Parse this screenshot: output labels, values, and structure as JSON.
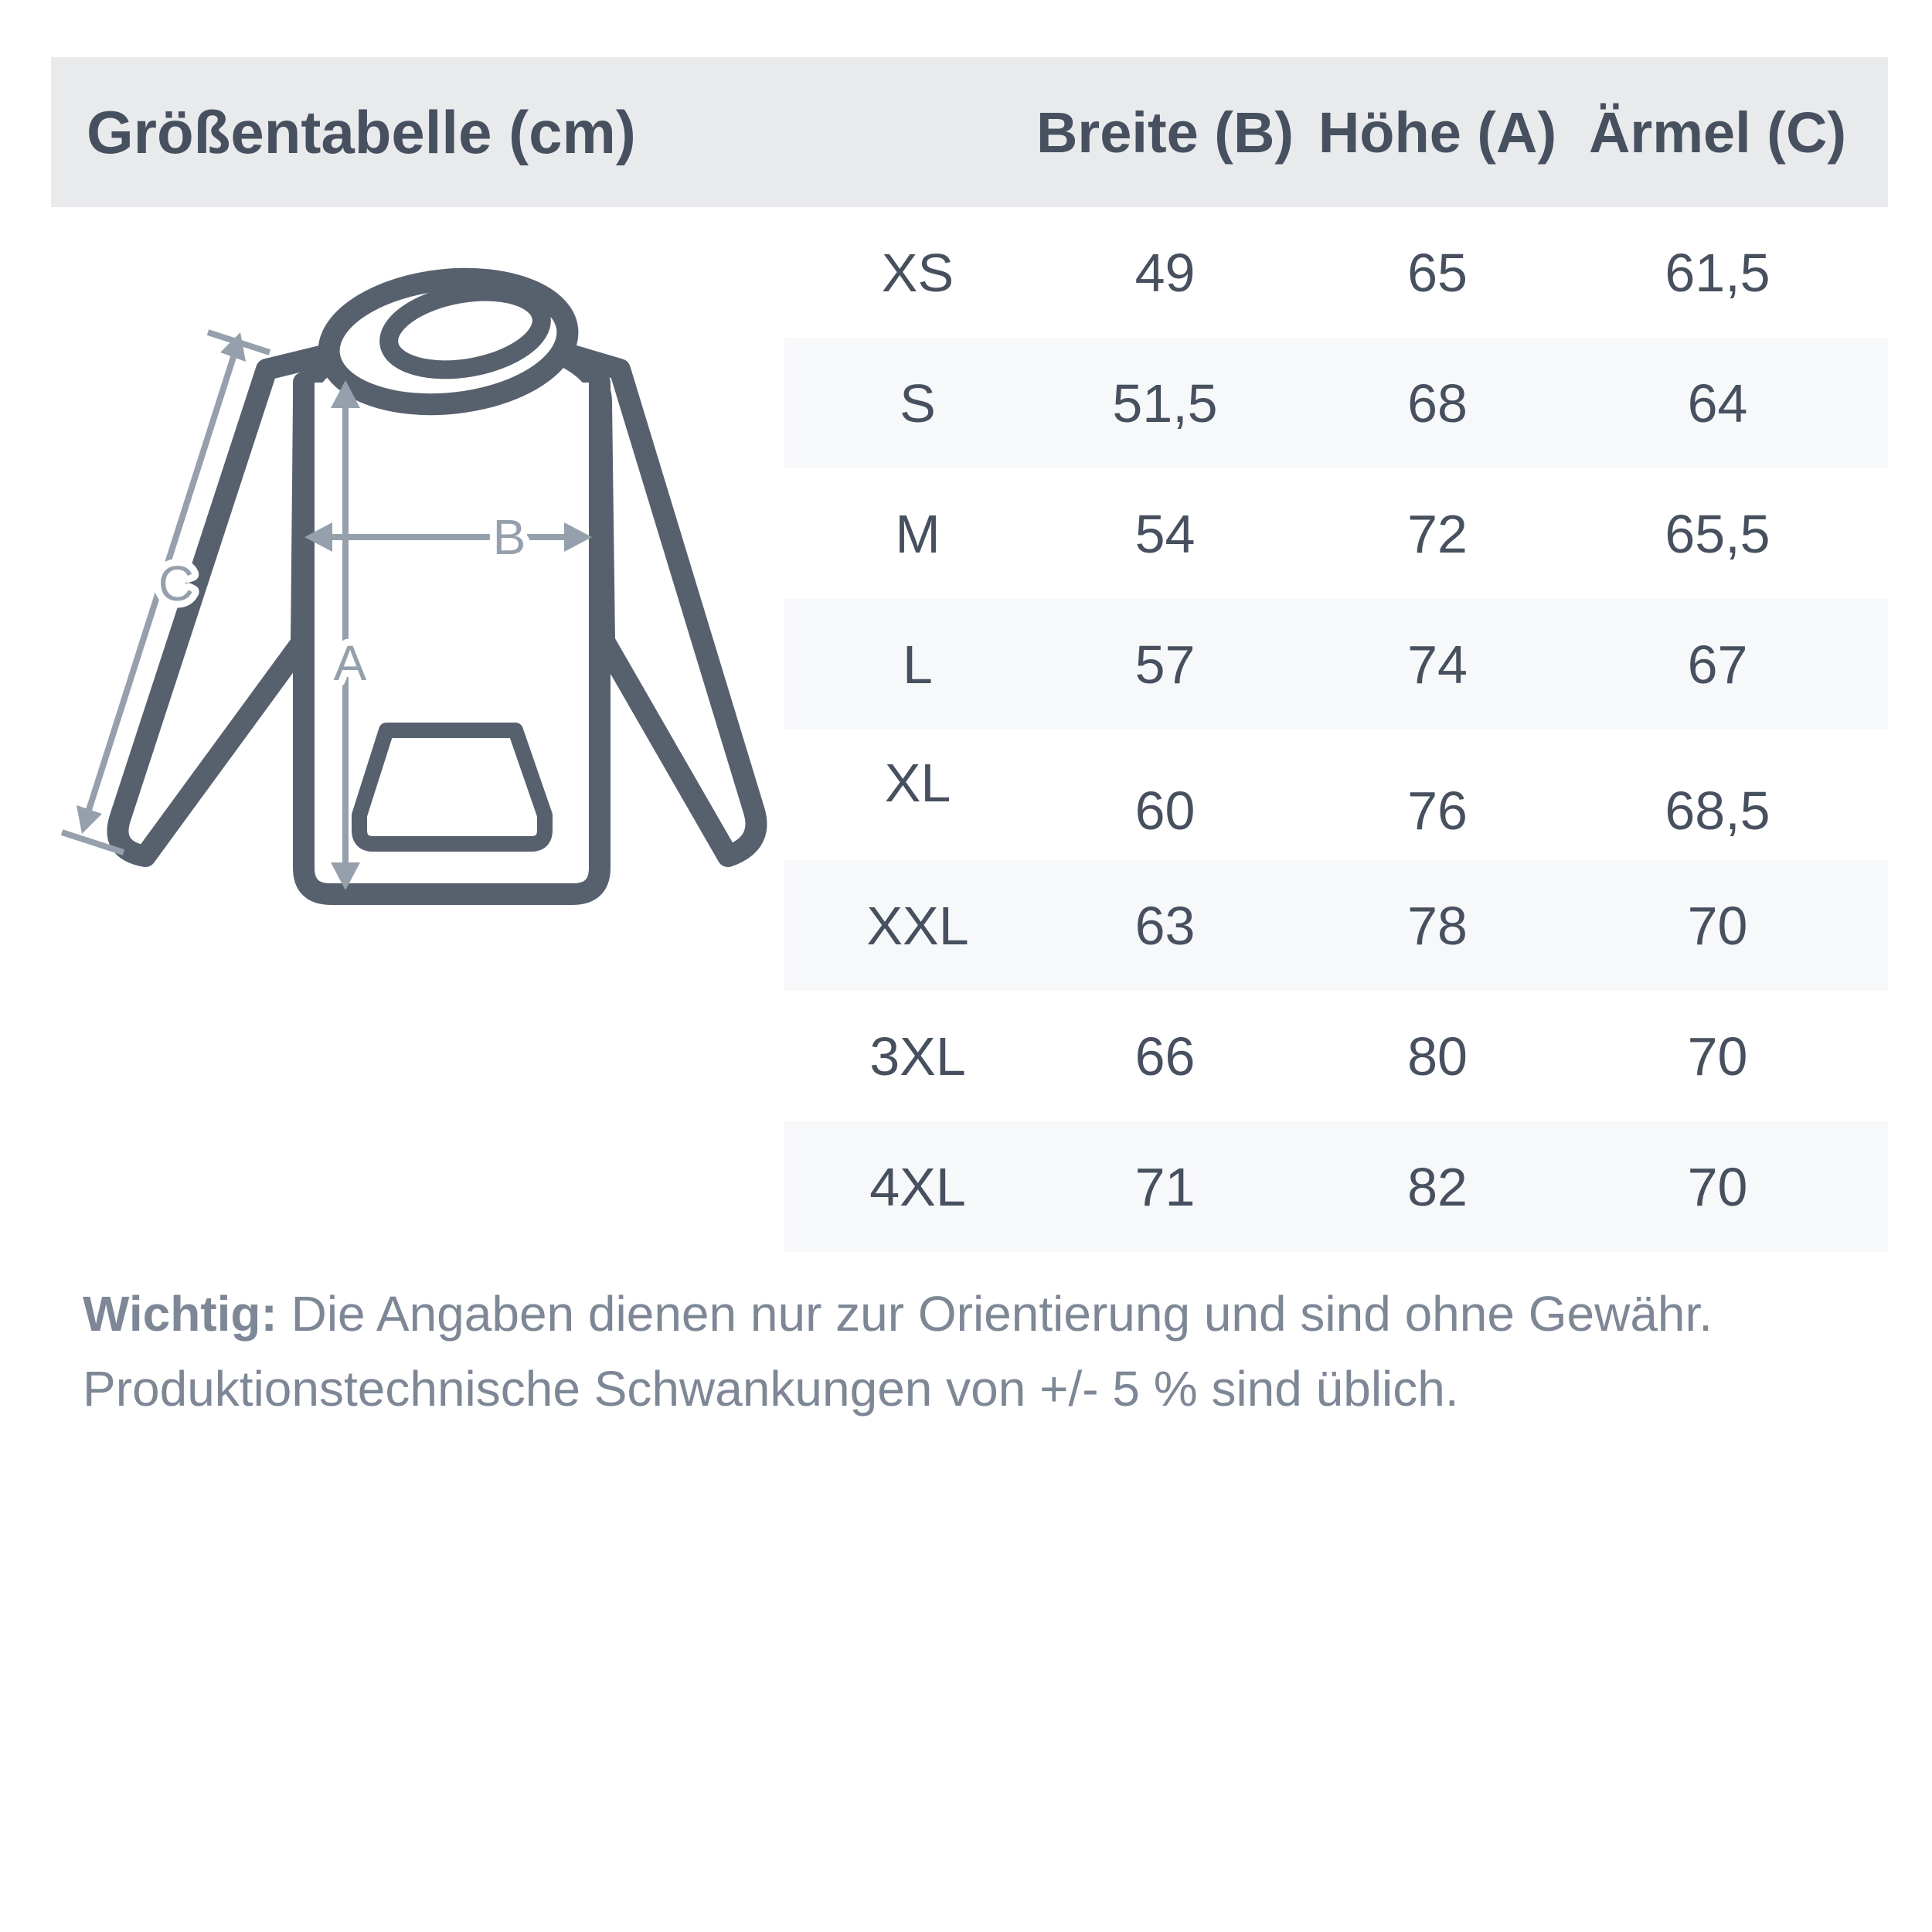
{
  "size_chart": {
    "title": "Größentabelle (cm)",
    "columns": [
      {
        "key": "breite",
        "label": "Breite (B)"
      },
      {
        "key": "hoehe",
        "label": "Höhe (A)"
      },
      {
        "key": "aermel",
        "label": "Ärmel (C)"
      }
    ],
    "rows": [
      {
        "size": "XS",
        "breite": "49",
        "hoehe": "65",
        "aermel": "61,5"
      },
      {
        "size": "S",
        "breite": "51,5",
        "hoehe": "68",
        "aermel": "64"
      },
      {
        "size": "M",
        "breite": "54",
        "hoehe": "72",
        "aermel": "65,5"
      },
      {
        "size": "L",
        "breite": "57",
        "hoehe": "74",
        "aermel": "67"
      },
      {
        "size": "XL",
        "breite": "60",
        "hoehe": "76",
        "aermel": "68,5"
      },
      {
        "size": "XXL",
        "breite": "63",
        "hoehe": "78",
        "aermel": "70"
      },
      {
        "size": "3XL",
        "breite": "66",
        "hoehe": "80",
        "aermel": "70"
      },
      {
        "size": "4XL",
        "breite": "71",
        "hoehe": "82",
        "aermel": "70"
      }
    ]
  },
  "diagram": {
    "labels": {
      "height": "A",
      "width": "B",
      "sleeve": "C"
    }
  },
  "note": {
    "label": "Wichtig:",
    "line1": " Die Angaben dienen nur zur Orientierung und sind ohne Gewähr.",
    "line2": "Produktionstechnische Schwankungen von +/- 5 % sind üblich."
  },
  "colors": {
    "background": "#ffffff",
    "header_band": "#e8eaec",
    "row_stripe": "#f7f8fa",
    "text_dark": "#47505e",
    "hoodie_outline": "#57616e",
    "dimension_arrow": "#95a0ac",
    "note_text": "#7d8795"
  }
}
